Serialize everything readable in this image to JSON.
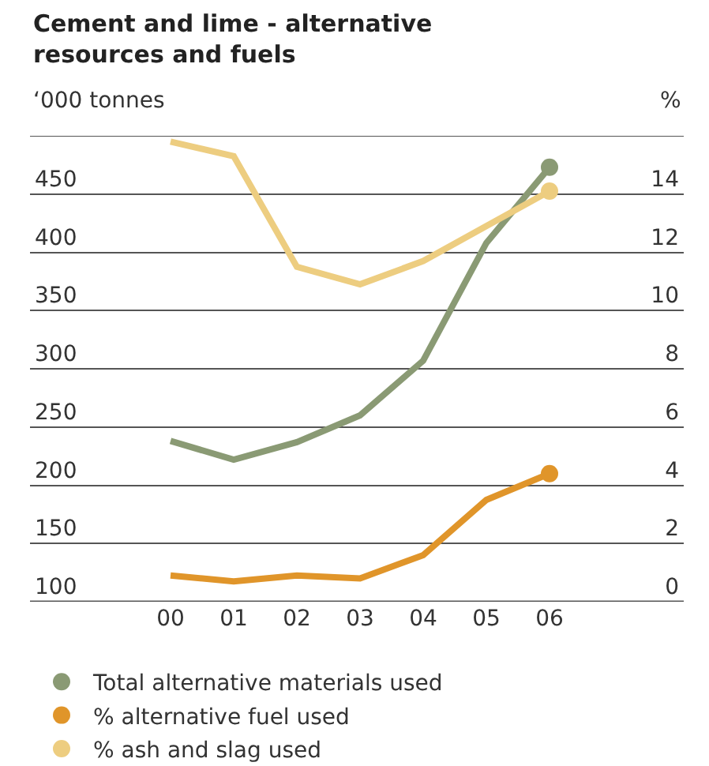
{
  "chart_data": {
    "type": "line",
    "title": "Cement and lime - alternative\nresources and fuels",
    "ylabel": "‘000 tonnes",
    "y2label": "%",
    "categories": [
      "00",
      "01",
      "02",
      "03",
      "04",
      "05",
      "06"
    ],
    "series": [
      {
        "name": "Total alternative materials used",
        "color": "#8a9a74",
        "values": [
          238,
          222,
          237,
          260,
          307,
          408,
          473
        ]
      },
      {
        "name": "% alternative fuel used",
        "color": "#e0952a",
        "axis": "y2",
        "values": [
          0.9,
          0.7,
          0.9,
          0.8,
          1.6,
          3.5,
          4.4
        ]
      },
      {
        "name": "% ash and slag used",
        "color": "#edcd80",
        "axis": "y2",
        "values": [
          15.8,
          15.3,
          11.5,
          10.9,
          11.7,
          12.9,
          14.1
        ]
      }
    ],
    "ylim": [
      100,
      500
    ],
    "yticks": [
      100,
      150,
      200,
      250,
      300,
      350,
      400,
      450,
      {
        "value": 500,
        "label": null
      }
    ],
    "y2lim": [
      0,
      16
    ],
    "y2ticks": [
      0,
      2,
      4,
      6,
      8,
      10,
      12,
      14
    ],
    "grid": "y",
    "legend": "bottom",
    "line_style": "solid"
  }
}
